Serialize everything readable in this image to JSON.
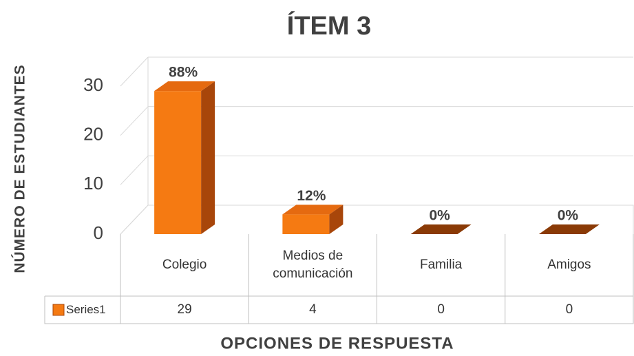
{
  "chart_data": {
    "type": "bar3d",
    "title": "ÍTEM 3",
    "y_label": "NÚMERO DE ESTUDIANTES",
    "x_label": "OPCIONES DE RESPUESTA",
    "categories": [
      "Colegio",
      "Medios de comunicación",
      "Familia",
      "Amigos"
    ],
    "series": [
      {
        "name": "Series1",
        "color": "#f57a12",
        "values": [
          29,
          4,
          0,
          0
        ],
        "value_labels": [
          "88%",
          "12%",
          "0%",
          "0%"
        ]
      }
    ],
    "ylim": [
      0,
      30
    ],
    "yticks": [
      0,
      10,
      20,
      30
    ],
    "grid": true,
    "data_table": true
  }
}
